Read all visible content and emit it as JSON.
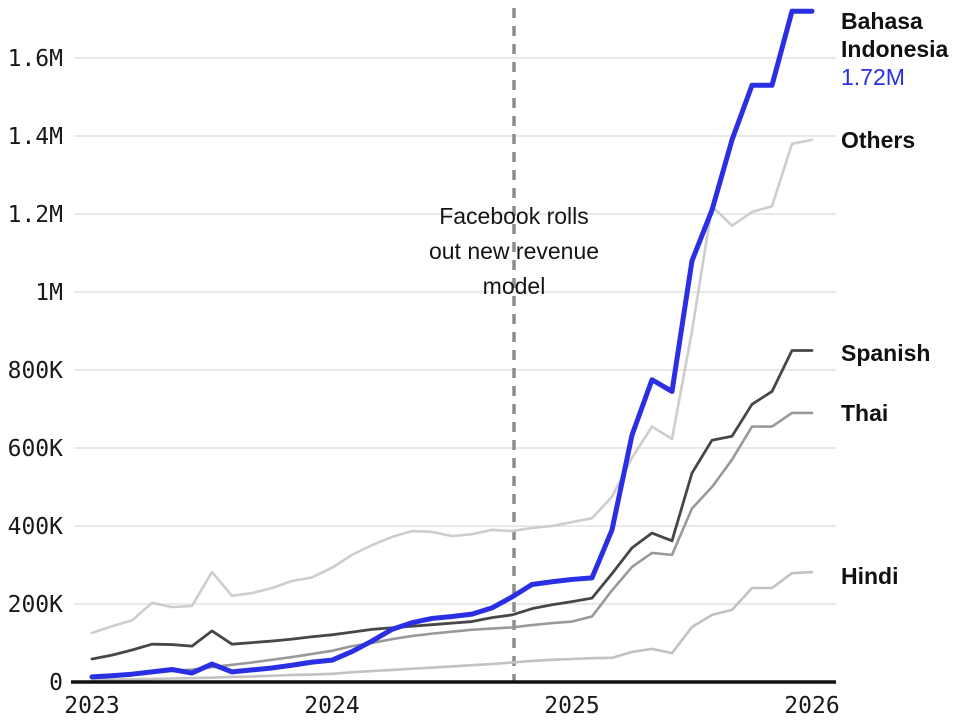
{
  "page": {
    "background": "#ffffff"
  },
  "chart_data": {
    "type": "line",
    "title": "",
    "xlabel": "",
    "ylabel": "",
    "x_unit": "month",
    "x_start": "2023-01",
    "n_points": 37,
    "grid": "horizontal",
    "legend_position": "right-of-line-ends",
    "x_ticks": {
      "month_positions": [
        0,
        12,
        24,
        36
      ],
      "labels": [
        "2023",
        "2024",
        "2025",
        "2026"
      ]
    },
    "y_ticks": {
      "values_thousands": [
        0,
        200,
        400,
        600,
        800,
        1000,
        1200,
        1400,
        1600
      ],
      "labels": [
        "0",
        "200K",
        "400K",
        "600K",
        "800K",
        "1M",
        "1.2M",
        "1.4M",
        "1.6M"
      ]
    },
    "ylim_thousands": [
      0,
      1780
    ],
    "colors": {
      "grid": "#e9e9e9",
      "axis": "#111111",
      "dashed_rule": "#8d8d8d",
      "tick_text": "#191919",
      "annotation_text": "#151515",
      "accent_blue": "#2b2fe4"
    },
    "annotation": {
      "text_lines": [
        "Facebook rolls",
        "out new revenue",
        "model"
      ],
      "month_index": 21.1,
      "style": "dashed-vertical-rule"
    },
    "series": [
      {
        "id": "others",
        "label": "Others",
        "end_label": "",
        "end_value_thousands": 1390,
        "color": "#cdcdcd",
        "stroke_width": 2.6,
        "label_dy": 0,
        "values_thousands": [
          126,
          143,
          158,
          203,
          192,
          195,
          282,
          221,
          228,
          241,
          259,
          268,
          293,
          326,
          351,
          372,
          387,
          385,
          374,
          379,
          390,
          387,
          395,
          400,
          410,
          420,
          475,
          575,
          655,
          623,
          900,
          1220,
          1170,
          1205,
          1220,
          1380,
          1390
        ]
      },
      {
        "id": "hindi",
        "label": "Hindi",
        "end_label": "",
        "end_value_thousands": 282,
        "color": "#c2c2c2",
        "stroke_width": 2.6,
        "label_dy": 4,
        "values_thousands": [
          5,
          6,
          7,
          8,
          9,
          10,
          11,
          13,
          14,
          16,
          18,
          19,
          21,
          25,
          28,
          31,
          34,
          37,
          40,
          43,
          46,
          50,
          54,
          57,
          59,
          61,
          62,
          77,
          85,
          74,
          141,
          172,
          185,
          241,
          241,
          279,
          282
        ]
      },
      {
        "id": "thai",
        "label": "Thai",
        "end_label": "",
        "end_value_thousands": 690,
        "color": "#999999",
        "stroke_width": 2.6,
        "label_dy": 0,
        "values_thousands": [
          14,
          17,
          20,
          24,
          28,
          32,
          38,
          44,
          50,
          57,
          64,
          72,
          80,
          92,
          100,
          110,
          118,
          124,
          129,
          134,
          137,
          140,
          146,
          151,
          155,
          168,
          235,
          295,
          331,
          326,
          445,
          500,
          570,
          655,
          655,
          690,
          690
        ]
      },
      {
        "id": "spanish",
        "label": "Spanish",
        "end_label": "",
        "end_value_thousands": 850,
        "color": "#474747",
        "stroke_width": 2.8,
        "label_dy": 2,
        "values_thousands": [
          59,
          69,
          82,
          97,
          96,
          92,
          131,
          97,
          101,
          105,
          110,
          116,
          121,
          128,
          135,
          139,
          143,
          147,
          151,
          155,
          165,
          172,
          188,
          198,
          206,
          215,
          278,
          344,
          382,
          362,
          536,
          620,
          630,
          712,
          745,
          850,
          850
        ]
      },
      {
        "id": "bahasa-indonesia",
        "label": "Bahasa Indonesia",
        "end_label": "1.72M",
        "end_value_thousands": 1720,
        "color": "#2b2fe4",
        "stroke_width": 5,
        "label_dy": 10,
        "values_thousands": [
          13,
          16,
          20,
          26,
          32,
          23,
          46,
          26,
          31,
          36,
          43,
          51,
          56,
          78,
          105,
          135,
          152,
          163,
          168,
          174,
          190,
          218,
          250,
          257,
          263,
          267,
          390,
          633,
          775,
          745,
          1080,
          1210,
          1390,
          1530,
          1530,
          1720,
          1720
        ]
      }
    ]
  }
}
